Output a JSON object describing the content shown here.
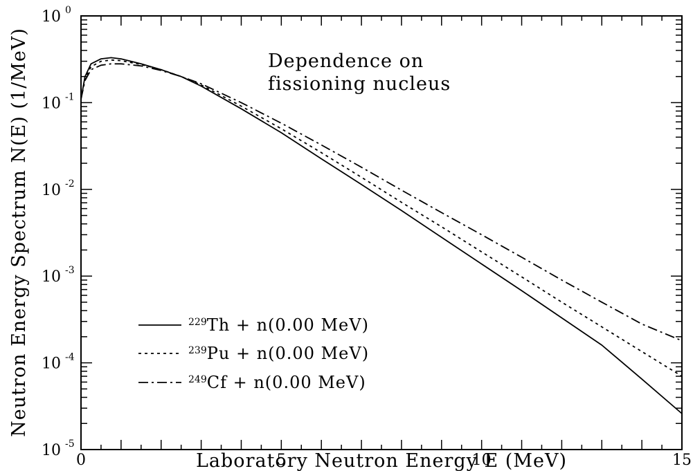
{
  "chart_data": {
    "type": "line",
    "xlabel": "Laboratory Neutron Energy E (MeV)",
    "ylabel": "Neutron Energy Spectrum N(E) (1/MeV)",
    "annotation": [
      "Dependence on",
      "fissioning nucleus"
    ],
    "xlim": [
      0,
      15
    ],
    "ylim": [
      1e-05,
      1
    ],
    "yscale": "log",
    "x_tick_labels": [
      "0",
      "5",
      "10",
      "15"
    ],
    "y_tick_labels": [
      {
        "base": "10",
        "exp": "0",
        "value": 1
      },
      {
        "base": "10",
        "exp": "-1",
        "value": 0.1
      },
      {
        "base": "10",
        "exp": "-2",
        "value": 0.01
      },
      {
        "base": "10",
        "exp": "-3",
        "value": 0.001
      },
      {
        "base": "10",
        "exp": "-4",
        "value": 0.0001
      },
      {
        "base": "10",
        "exp": "-5",
        "value": 1e-05
      }
    ],
    "legend_placement": "bottom-left",
    "series": [
      {
        "name": "²²⁹Th + n(0.00 MeV)",
        "legend_mass": "229",
        "legend_rest": "Th + n(0.00 MeV)",
        "style": "solid",
        "x": [
          0,
          0.1,
          0.25,
          0.5,
          0.75,
          1.0,
          1.5,
          2.0,
          2.5,
          3.0,
          4.0,
          5.0,
          6.0,
          7.0,
          8.0,
          9.0,
          10.0,
          11.0,
          12.0,
          13.0,
          14.0,
          15.0
        ],
        "y": [
          0.11,
          0.2,
          0.28,
          0.32,
          0.33,
          0.32,
          0.28,
          0.24,
          0.2,
          0.155,
          0.085,
          0.045,
          0.0225,
          0.0114,
          0.0057,
          0.0028,
          0.00138,
          0.00068,
          0.00033,
          0.00016,
          6.5e-05,
          2.6e-05
        ]
      },
      {
        "name": "²³⁹Pu + n(0.00 MeV)",
        "legend_mass": "239",
        "legend_rest": "Pu + n(0.00 MeV)",
        "style": "dotted",
        "x": [
          0,
          0.1,
          0.25,
          0.5,
          0.75,
          1.0,
          1.5,
          2.0,
          2.5,
          3.0,
          4.0,
          5.0,
          6.0,
          7.0,
          8.0,
          9.0,
          10.0,
          11.0,
          12.0,
          13.0,
          14.0,
          15.0
        ],
        "y": [
          0.11,
          0.19,
          0.26,
          0.3,
          0.31,
          0.305,
          0.275,
          0.24,
          0.2,
          0.16,
          0.091,
          0.05,
          0.0265,
          0.0138,
          0.0071,
          0.0037,
          0.0019,
          0.00098,
          0.0005,
          0.00026,
          0.000135,
          7e-05
        ]
      },
      {
        "name": "²⁴⁹Cf + n(0.00 MeV)",
        "legend_mass": "249",
        "legend_rest": "Cf + n(0.00 MeV)",
        "style": "dashdot",
        "x": [
          0,
          0.1,
          0.25,
          0.5,
          0.75,
          1.0,
          1.5,
          2.0,
          2.5,
          3.0,
          4.0,
          5.0,
          6.0,
          7.0,
          8.0,
          9.0,
          10.0,
          11.0,
          12.0,
          13.0,
          14.0,
          15.0
        ],
        "y": [
          0.11,
          0.18,
          0.24,
          0.27,
          0.28,
          0.28,
          0.265,
          0.235,
          0.2,
          0.165,
          0.1,
          0.058,
          0.0325,
          0.018,
          0.0098,
          0.0054,
          0.003,
          0.00165,
          0.0009,
          0.0005,
          0.00028,
          0.00018
        ]
      }
    ]
  }
}
